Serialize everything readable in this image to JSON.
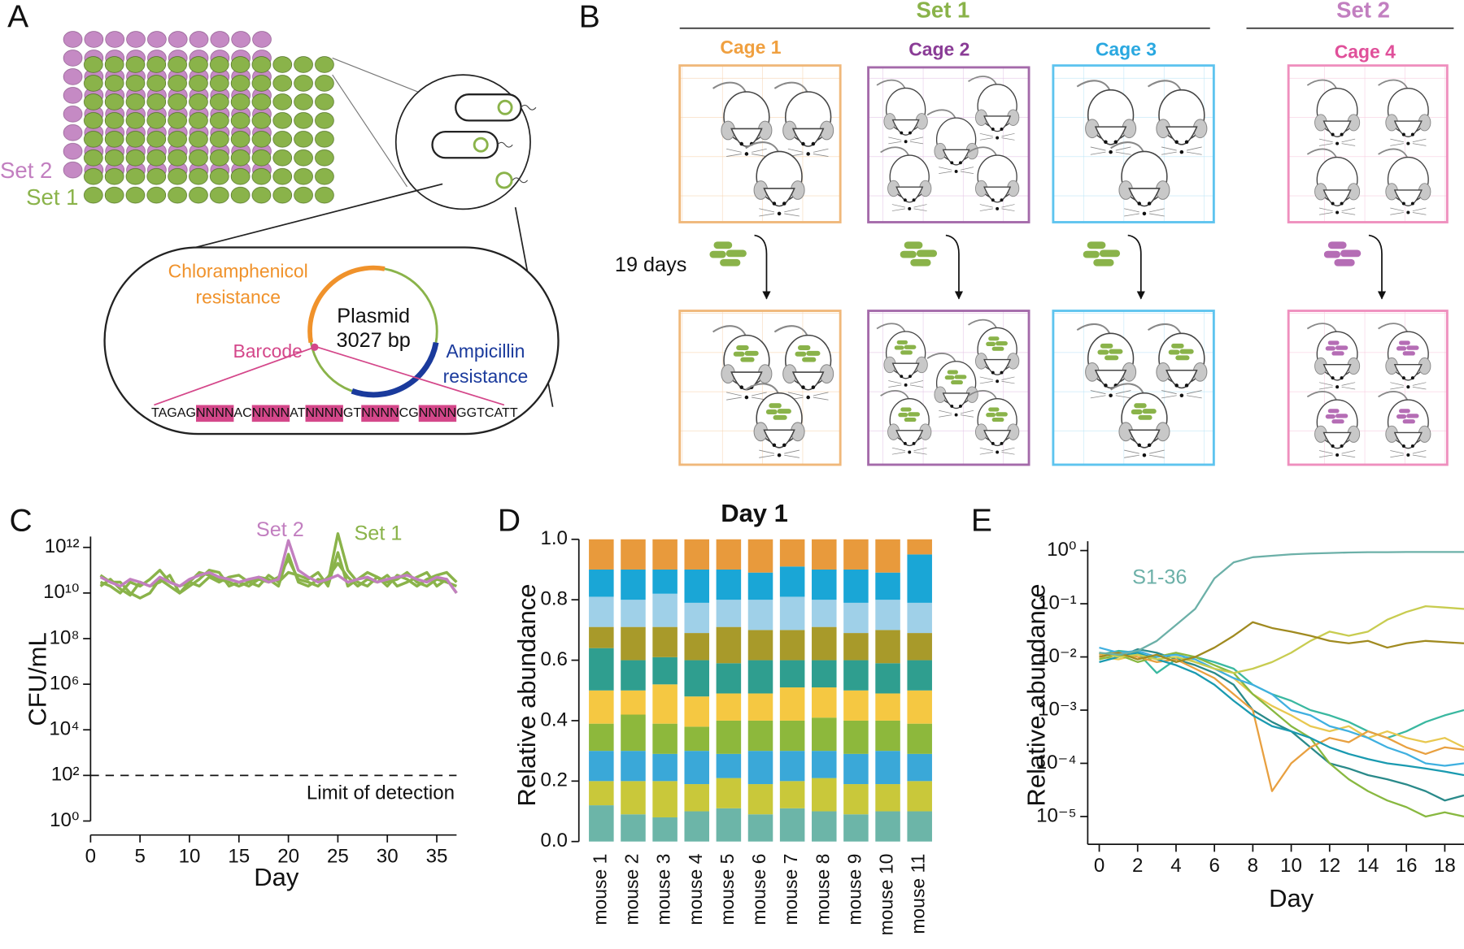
{
  "figure": {
    "panel_a": {
      "label": "A",
      "set2": "Set 2",
      "set1": "Set 1",
      "cat_resistance": [
        "Chloramphenicol",
        "resistance"
      ],
      "plasmid_name": "Plasmid",
      "plasmid_size": "3027 bp",
      "barcode": "Barcode",
      "amp_resistance": [
        "Ampicillin",
        "resistance"
      ],
      "sequence": [
        "TAGAG",
        "NNNN",
        "AC",
        "NNNN",
        "AT",
        "NNNN",
        "GT",
        "NNNN",
        "CG",
        "NNNN",
        "GGTCATT"
      ]
    },
    "panel_b": {
      "label": "B",
      "groups": [
        "Set 1",
        "Set 2"
      ],
      "cages": [
        "Cage 1",
        "Cage 2",
        "Cage 3",
        "Cage 4"
      ],
      "duration": "19 days"
    }
  },
  "chart_data": [
    {
      "type": "line",
      "panel": "C",
      "xlabel": "Day",
      "ylabel": "CFU/mL",
      "log_y": true,
      "xlim": [
        0,
        37
      ],
      "xticks": [
        0,
        5,
        10,
        15,
        20,
        25,
        30,
        35
      ],
      "ylim": [
        1,
        3000000000000
      ],
      "yticks": [
        {
          "value": 1,
          "label": "10⁰"
        },
        {
          "value": 100,
          "label": "10²"
        },
        {
          "value": 10000,
          "label": "10⁴"
        },
        {
          "value": 1000000,
          "label": "10⁶"
        },
        {
          "value": 100000000,
          "label": "10⁸"
        },
        {
          "value": 10000000000,
          "label": "10¹⁰"
        },
        {
          "value": 1000000000000,
          "label": "10¹²"
        }
      ],
      "threshold": {
        "value": 100,
        "label": "Limit of detection"
      },
      "x": [
        1,
        2,
        3,
        4,
        5,
        6,
        7,
        8,
        9,
        10,
        11,
        12,
        13,
        14,
        15,
        16,
        17,
        18,
        19,
        20,
        21,
        22,
        23,
        24,
        25,
        26,
        27,
        28,
        29,
        30,
        31,
        32,
        33,
        34,
        35,
        36,
        37
      ],
      "series": [
        {
          "name": "Set 2",
          "color": "#c27fc0",
          "values": [
            50000000000.0,
            30000000000.0,
            20000000000.0,
            40000000000.0,
            30000000000.0,
            20000000000.0,
            50000000000.0,
            30000000000.0,
            20000000000.0,
            40000000000.0,
            60000000000.0,
            80000000000.0,
            50000000000.0,
            40000000000.0,
            30000000000.0,
            40000000000.0,
            50000000000.0,
            30000000000.0,
            40000000000.0,
            2000000000000.0,
            100000000000.0,
            50000000000.0,
            30000000000.0,
            40000000000.0,
            60000000000.0,
            30000000000.0,
            40000000000.0,
            50000000000.0,
            30000000000.0,
            40000000000.0,
            50000000000.0,
            60000000000.0,
            40000000000.0,
            30000000000.0,
            50000000000.0,
            40000000000.0,
            10000000000.0
          ]
        },
        {
          "name": "Set 1",
          "color": "#8ab34a",
          "values": [
            30000000000.0,
            20000000000.0,
            10000000000.0,
            30000000000.0,
            20000000000.0,
            40000000000.0,
            100000000000.0,
            30000000000.0,
            20000000000.0,
            30000000000.0,
            80000000000.0,
            60000000000.0,
            40000000000.0,
            30000000000.0,
            20000000000.0,
            30000000000.0,
            50000000000.0,
            40000000000.0,
            20000000000.0,
            500000000000.0,
            30000000000.0,
            20000000000.0,
            40000000000.0,
            30000000000.0,
            4000000000000.0,
            100000000000.0,
            30000000000.0,
            20000000000.0,
            50000000000.0,
            30000000000.0,
            40000000000.0,
            80000000000.0,
            30000000000.0,
            20000000000.0,
            40000000000.0,
            30000000000.0,
            20000000000.0
          ]
        },
        {
          "color": "#8ab34a",
          "values": [
            20000000000.0,
            40000000000.0,
            15000000000.0,
            8000000000.0,
            30000000000.0,
            20000000000.0,
            30000000000.0,
            60000000000.0,
            10000000000.0,
            20000000000.0,
            40000000000.0,
            100000000000.0,
            80000000000.0,
            20000000000.0,
            30000000000.0,
            20000000000.0,
            40000000000.0,
            30000000000.0,
            50000000000.0,
            300000000000.0,
            40000000000.0,
            30000000000.0,
            20000000000.0,
            50000000000.0,
            200000000000.0,
            50000000000.0,
            20000000000.0,
            40000000000.0,
            30000000000.0,
            60000000000.0,
            20000000000.0,
            30000000000.0,
            50000000000.0,
            80000000000.0,
            20000000000.0,
            40000000000.0,
            10000000000.0
          ]
        },
        {
          "color": "#8ab34a",
          "values": [
            60000000000.0,
            30000000000.0,
            30000000000.0,
            10000000000.0,
            6000000000.0,
            10000000000.0,
            40000000000.0,
            20000000000.0,
            10000000000.0,
            30000000000.0,
            20000000000.0,
            50000000000.0,
            30000000000.0,
            50000000000.0,
            60000000000.0,
            30000000000.0,
            20000000000.0,
            60000000000.0,
            30000000000.0,
            80000000000.0,
            60000000000.0,
            40000000000.0,
            80000000000.0,
            20000000000.0,
            600000000000.0,
            20000000000.0,
            40000000000.0,
            80000000000.0,
            50000000000.0,
            20000000000.0,
            60000000000.0,
            40000000000.0,
            20000000000.0,
            40000000000.0,
            60000000000.0,
            80000000000.0,
            30000000000.0
          ]
        }
      ]
    },
    {
      "type": "bar",
      "panel": "D",
      "title": "Day 1",
      "ylabel": "Relative abundance",
      "stacked": true,
      "categories": [
        "mouse 1",
        "mouse 2",
        "mouse 3",
        "mouse 4",
        "mouse 5",
        "mouse 6",
        "mouse 7",
        "mouse 8",
        "mouse 9",
        "mouse 10",
        "mouse 11"
      ],
      "ylim": [
        0,
        1
      ],
      "yticks": [
        {
          "value": 0,
          "label": "0.0"
        },
        0.2,
        0.4,
        0.6,
        0.8,
        {
          "value": 1,
          "label": "1.0"
        }
      ],
      "series": [
        {
          "color": "#6cb5a8",
          "values": [
            0.12,
            0.09,
            0.08,
            0.1,
            0.11,
            0.09,
            0.11,
            0.1,
            0.09,
            0.1,
            0.1
          ]
        },
        {
          "color": "#c9c83a",
          "values": [
            0.08,
            0.11,
            0.12,
            0.09,
            0.1,
            0.1,
            0.09,
            0.11,
            0.1,
            0.09,
            0.1
          ]
        },
        {
          "color": "#3aa8d8",
          "values": [
            0.1,
            0.1,
            0.09,
            0.11,
            0.08,
            0.11,
            0.1,
            0.09,
            0.1,
            0.11,
            0.09
          ]
        },
        {
          "color": "#8db83c",
          "values": [
            0.09,
            0.12,
            0.1,
            0.08,
            0.11,
            0.1,
            0.1,
            0.11,
            0.11,
            0.1,
            0.1
          ]
        },
        {
          "color": "#f5c842",
          "values": [
            0.11,
            0.08,
            0.13,
            0.1,
            0.09,
            0.09,
            0.11,
            0.1,
            0.1,
            0.09,
            0.11
          ]
        },
        {
          "color": "#2f9e8f",
          "values": [
            0.14,
            0.1,
            0.09,
            0.12,
            0.1,
            0.11,
            0.09,
            0.09,
            0.1,
            0.1,
            0.1
          ]
        },
        {
          "color": "#a89a2a",
          "values": [
            0.07,
            0.11,
            0.1,
            0.09,
            0.12,
            0.1,
            0.1,
            0.11,
            0.09,
            0.11,
            0.09
          ]
        },
        {
          "color": "#9fd0e8",
          "values": [
            0.1,
            0.09,
            0.11,
            0.1,
            0.09,
            0.1,
            0.11,
            0.09,
            0.1,
            0.1,
            0.1
          ]
        },
        {
          "color": "#1aa6d6",
          "values": [
            0.09,
            0.1,
            0.08,
            0.11,
            0.1,
            0.09,
            0.1,
            0.1,
            0.11,
            0.09,
            0.16
          ]
        },
        {
          "color": "#e89a3c",
          "values": [
            0.1,
            0.1,
            0.1,
            0.1,
            0.1,
            0.11,
            0.09,
            0.1,
            0.1,
            0.11,
            0.05
          ]
        }
      ]
    },
    {
      "type": "line",
      "panel": "E",
      "xlabel": "Day",
      "ylabel": "Relative abundance",
      "log_y": true,
      "xlim": [
        -0.6,
        19
      ],
      "xticks": [
        0,
        2,
        4,
        6,
        8,
        10,
        12,
        14,
        16,
        18
      ],
      "ylim": [
        3e-06,
        1.5
      ],
      "yticks": [
        {
          "value": 1,
          "label": "10⁰"
        },
        {
          "value": 0.1,
          "label": "10⁻¹"
        },
        {
          "value": 0.01,
          "label": "10⁻²"
        },
        {
          "value": 0.001,
          "label": "10⁻³"
        },
        {
          "value": 0.0001,
          "label": "10⁻⁴"
        },
        {
          "value": 1e-05,
          "label": "10⁻⁵"
        }
      ],
      "x": [
        0,
        1,
        2,
        3,
        4,
        5,
        6,
        7,
        8,
        9,
        10,
        11,
        12,
        13,
        14,
        15,
        16,
        17,
        18,
        19
      ],
      "series": [
        {
          "name": "S1-36",
          "color": "#6cb0a8",
          "values": [
            0.012,
            0.011,
            0.013,
            0.02,
            0.04,
            0.08,
            0.3,
            0.6,
            0.75,
            0.8,
            0.85,
            0.88,
            0.9,
            0.92,
            0.93,
            0.93,
            0.94,
            0.94,
            0.94,
            0.94
          ]
        },
        {
          "color": "#a08a20",
          "values": [
            0.01,
            0.012,
            0.009,
            0.011,
            0.008,
            0.01,
            0.015,
            0.025,
            0.045,
            0.035,
            0.03,
            0.025,
            0.02,
            0.018,
            0.02,
            0.015,
            0.018,
            0.02,
            0.019,
            0.018
          ]
        },
        {
          "color": "#c8cc50",
          "values": [
            0.012,
            0.01,
            0.011,
            0.009,
            0.01,
            0.008,
            0.006,
            0.005,
            0.006,
            0.008,
            0.012,
            0.02,
            0.03,
            0.025,
            0.03,
            0.05,
            0.07,
            0.09,
            0.085,
            0.08
          ]
        },
        {
          "color": "#1a9ab0",
          "values": [
            0.008,
            0.01,
            0.012,
            0.009,
            0.007,
            0.005,
            0.003,
            0.0015,
            0.0008,
            0.0005,
            0.0004,
            0.0003,
            0.0002,
            0.00015,
            0.00012,
            0.0001,
            9e-05,
            8e-05,
            7e-05,
            6e-05
          ]
        },
        {
          "color": "#e8a040",
          "values": [
            0.011,
            0.012,
            0.01,
            0.008,
            0.009,
            0.006,
            0.004,
            0.002,
            0.001,
            3e-05,
            0.0001,
            0.0002,
            0.0003,
            0.00025,
            0.0004,
            0.0003,
            0.0002,
            0.00015,
            0.0002,
            0.00018
          ]
        },
        {
          "color": "#40b0e0",
          "values": [
            0.015,
            0.012,
            0.013,
            0.01,
            0.011,
            0.009,
            0.006,
            0.004,
            0.003,
            0.002,
            0.001,
            0.0008,
            0.0005,
            0.0004,
            0.0003,
            0.0002,
            0.00015,
            0.0001,
            9e-05,
            0.0001
          ]
        },
        {
          "color": "#88b840",
          "values": [
            0.009,
            0.011,
            0.008,
            0.01,
            0.012,
            0.01,
            0.007,
            0.005,
            0.002,
            0.001,
            0.0005,
            0.0003,
            0.0001,
            5e-05,
            3e-05,
            2e-05,
            1.5e-05,
            1e-05,
            1.2e-05,
            1e-05
          ]
        },
        {
          "color": "#2a8a8a",
          "values": [
            0.012,
            0.01,
            0.014,
            0.012,
            0.009,
            0.007,
            0.005,
            0.003,
            0.001,
            0.0006,
            0.0004,
            0.0002,
            0.0001,
            8e-05,
            6e-05,
            5e-05,
            4e-05,
            3e-05,
            2e-05,
            2.5e-05
          ]
        },
        {
          "color": "#e8c850",
          "values": [
            0.01,
            0.009,
            0.011,
            0.01,
            0.012,
            0.008,
            0.006,
            0.004,
            0.002,
            0.0012,
            0.0008,
            0.0005,
            0.0004,
            0.0005,
            0.0003,
            0.0004,
            0.0003,
            0.00025,
            0.0003,
            0.0002
          ]
        },
        {
          "color": "#3ab8a0",
          "values": [
            0.011,
            0.013,
            0.012,
            0.005,
            0.009,
            0.01,
            0.008,
            0.006,
            0.003,
            0.002,
            0.0015,
            0.001,
            0.0008,
            0.0006,
            0.0004,
            0.0003,
            0.0004,
            0.0006,
            0.0008,
            0.001
          ]
        }
      ]
    }
  ]
}
